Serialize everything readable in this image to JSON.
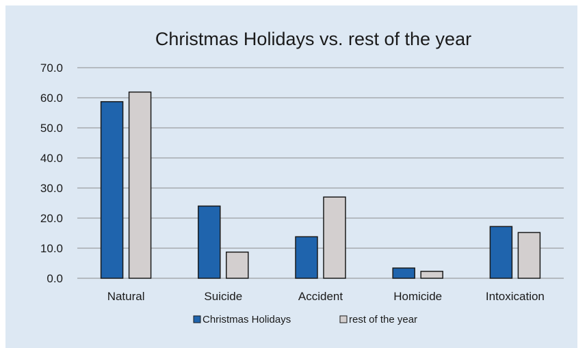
{
  "chart_data": {
    "type": "bar",
    "title": "Christmas Holidays vs. rest of the year",
    "categories": [
      "Natural",
      "Suicide",
      "Accident",
      "Homicide",
      "Intoxication"
    ],
    "series": [
      {
        "name": "Christmas Holidays",
        "values": [
          58.7,
          24.0,
          13.8,
          3.4,
          17.2
        ],
        "color": "#1f64ad"
      },
      {
        "name": "rest of the year",
        "values": [
          61.9,
          8.7,
          27.0,
          2.3,
          15.2
        ],
        "color": "#d3cfcf"
      }
    ],
    "ylim": [
      0,
      70
    ],
    "yticks": [
      "0.0",
      "10.0",
      "20.0",
      "30.0",
      "40.0",
      "50.0",
      "60.0",
      "70.0"
    ],
    "grid": true,
    "legend": "bottom",
    "background": "#dde8f3"
  }
}
